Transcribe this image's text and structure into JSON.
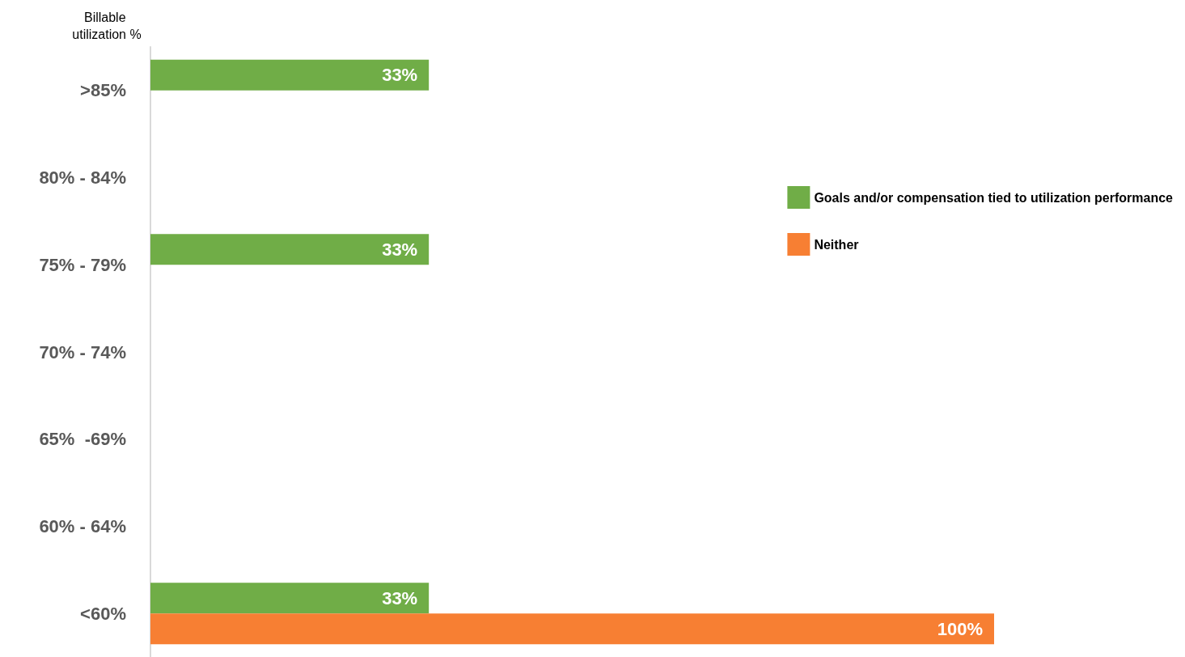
{
  "chart_data": {
    "type": "bar",
    "orientation": "horizontal",
    "tick_labels": "y",
    "ylabel": "Billable utilization %",
    "categories": [
      ">85%",
      "80% - 84%",
      "75% - 79%",
      "70% - 74%",
      "65%  -69%",
      "60% - 64%",
      "<60%"
    ],
    "series": [
      {
        "name": "Goals and/or compensation tied to utilization performance",
        "color": "#70ad47",
        "values": [
          33,
          null,
          33,
          null,
          null,
          null,
          33
        ],
        "value_labels": [
          "33%",
          null,
          "33%",
          null,
          null,
          null,
          "33%"
        ]
      },
      {
        "name": "Neither",
        "color": "#f77f33",
        "values": [
          null,
          null,
          null,
          null,
          null,
          null,
          100
        ],
        "value_labels": [
          null,
          null,
          null,
          null,
          null,
          null,
          "100%"
        ]
      }
    ],
    "legend": "right",
    "grid": false
  }
}
